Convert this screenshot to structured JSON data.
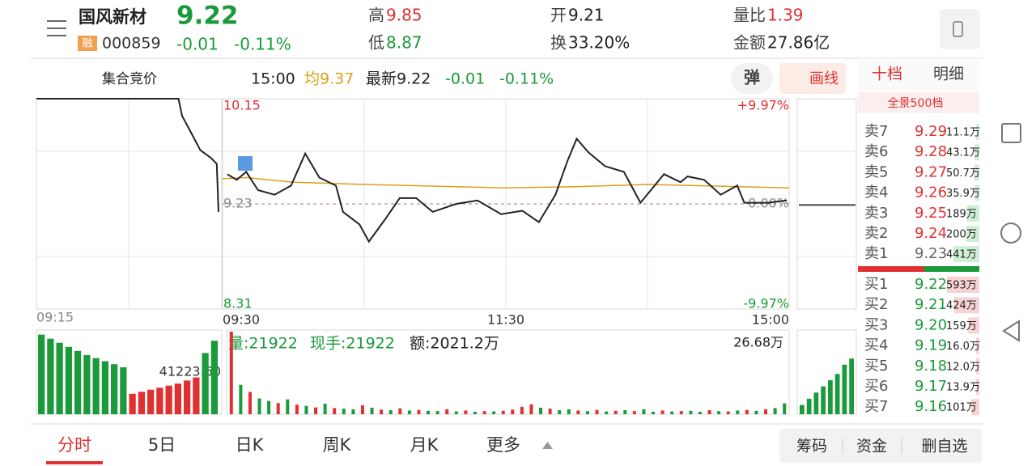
{
  "header": {
    "name": "国风新材",
    "badge": "融",
    "code": "000859",
    "price": "9.22",
    "change": "-0.01",
    "change_pct": "-0.11%",
    "stats": [
      {
        "label": "高",
        "value": "9.85",
        "color": "#e03030"
      },
      {
        "label": "低",
        "value": "8.87",
        "color": "#1a9a3a"
      },
      {
        "label": "开",
        "value": "9.21",
        "color": "#222222"
      },
      {
        "label": "换",
        "value": "33.20%",
        "color": "#222222"
      },
      {
        "label": "量比",
        "value": "1.39",
        "color": "#e03030"
      },
      {
        "label": "金额",
        "value": "27.86亿",
        "color": "#222222"
      }
    ]
  },
  "toolbar": {
    "auction": "集合竞价",
    "time": "15:00",
    "avg": "均9.37",
    "latest": "最新9.22",
    "change": "-0.01",
    "change_pct": "-0.11%",
    "pop": "弹",
    "draw": "画线"
  },
  "chart": {
    "ylim": [
      8.31,
      10.15
    ],
    "yticks": [
      10.15,
      9.23,
      8.31
    ],
    "pct_labels": [
      "+9.97%",
      "0.00%",
      "-9.97%"
    ],
    "time_labels": [
      "09:15",
      "09:30",
      "11:30",
      "15:00"
    ],
    "auction": {
      "xlim": [
        0,
        10
      ],
      "x": [
        0,
        7.8,
        8,
        8.5,
        9,
        9.6,
        9.9,
        10
      ],
      "values": [
        10.15,
        10.15,
        10.0,
        9.85,
        9.7,
        9.63,
        9.58,
        9.16
      ],
      "color": "#222222"
    },
    "price": {
      "xlim": [
        0,
        240
      ],
      "x": [
        2,
        6,
        10,
        15,
        22,
        29,
        35,
        41,
        48,
        51,
        58,
        62,
        69,
        75,
        82,
        89,
        99,
        108,
        118,
        127,
        134,
        141,
        146,
        150,
        155,
        162,
        170,
        177,
        183,
        187,
        194,
        197,
        204,
        211,
        218,
        221,
        231,
        239
      ],
      "values": [
        9.49,
        9.44,
        9.51,
        9.35,
        9.31,
        9.39,
        9.67,
        9.46,
        9.39,
        9.16,
        9.05,
        8.9,
        9.1,
        9.28,
        9.28,
        9.16,
        9.23,
        9.26,
        9.14,
        9.17,
        9.07,
        9.31,
        9.6,
        9.8,
        9.68,
        9.56,
        9.51,
        9.24,
        9.39,
        9.49,
        9.42,
        9.47,
        9.44,
        9.31,
        9.39,
        9.24,
        9.24,
        9.26
      ],
      "color": "#222222"
    },
    "average": {
      "x": [
        0,
        10,
        30,
        60,
        120,
        150,
        180,
        240
      ],
      "values": [
        9.45,
        9.46,
        9.42,
        9.4,
        9.37,
        9.38,
        9.4,
        9.37
      ],
      "color": "#d9a018"
    },
    "after_hours": {
      "values": [
        9.22,
        9.22
      ],
      "color": "#444444"
    }
  },
  "volume": {
    "quantity": "量:21922",
    "hand": "现手:21922",
    "amount": "额:2021.2万",
    "max_label": "26.68万",
    "ylim": [
      0,
      26.68
    ],
    "values": [
      26.68,
      9.5,
      7.2,
      5.1,
      4.3,
      3.6,
      4.8,
      3.1,
      2.7,
      2.2,
      3.4,
      2.0,
      1.8,
      1.6,
      2.9,
      2.1,
      1.5,
      1.3,
      1.9,
      1.2,
      1.4,
      1.1,
      1.0,
      1.6,
      0.9,
      1.2,
      0.8,
      1.0,
      0.9,
      1.1,
      1.5,
      2.4,
      3.2,
      2.1,
      1.8,
      1.3,
      1.6,
      1.2,
      1.0,
      1.4,
      0.9,
      1.1,
      1.3,
      1.0,
      1.6,
      0.8,
      1.2,
      0.9,
      1.0,
      1.1,
      0.8,
      1.3,
      1.0,
      0.9,
      1.2,
      1.4,
      1.1,
      1.6,
      2.0,
      3.5
    ],
    "colors": [
      "#e03030",
      "#1a9a3a",
      "#e03030",
      "#1a9a3a",
      "#1a9a3a",
      "#e03030",
      "#1a9a3a",
      "#e03030",
      "#1a9a3a",
      "#e03030",
      "#1a9a3a",
      "#e03030",
      "#1a9a3a",
      "#1a9a3a",
      "#e03030",
      "#1a9a3a",
      "#e03030",
      "#1a9a3a",
      "#e03030",
      "#1a9a3a",
      "#e03030",
      "#1a9a3a",
      "#1a9a3a",
      "#e03030",
      "#1a9a3a",
      "#e03030",
      "#1a9a3a",
      "#e03030",
      "#1a9a3a",
      "#e03030",
      "#e03030",
      "#e03030",
      "#e03030",
      "#1a9a3a",
      "#e03030",
      "#1a9a3a",
      "#1a9a3a",
      "#e03030",
      "#1a9a3a",
      "#e03030",
      "#1a9a3a",
      "#e03030",
      "#1a9a3a",
      "#e03030",
      "#1a9a3a",
      "#1a9a3a",
      "#e03030",
      "#1a9a3a",
      "#e03030",
      "#1a9a3a",
      "#1a9a3a",
      "#e03030",
      "#1a9a3a",
      "#e03030",
      "#1a9a3a",
      "#e03030",
      "#1a9a3a",
      "#e03030",
      "#1a9a3a",
      "#1a9a3a"
    ],
    "auction": {
      "ref": {
        "value": 41223.6,
        "label": "41223.60"
      },
      "values": [
        78000,
        74000,
        70000,
        66000,
        62000,
        58000,
        55000,
        52000,
        49000,
        46000,
        20000,
        22000,
        24000,
        26000,
        28000,
        30000,
        33000,
        36000,
        60000,
        72000
      ],
      "colors": [
        "#1a9a3a",
        "#1a9a3a",
        "#1a9a3a",
        "#1a9a3a",
        "#1a9a3a",
        "#1a9a3a",
        "#1a9a3a",
        "#1a9a3a",
        "#1a9a3a",
        "#1a9a3a",
        "#e03030",
        "#e03030",
        "#e03030",
        "#e03030",
        "#e03030",
        "#e03030",
        "#e03030",
        "#e03030",
        "#1a9a3a",
        "#1a9a3a"
      ]
    },
    "after_hours": {
      "values": [
        3,
        5,
        7,
        9,
        11,
        13,
        16,
        18
      ],
      "color": "#1a9a3a"
    }
  },
  "order_book": {
    "tabs": [
      "十档",
      "明细"
    ],
    "depth": "全景500档",
    "asks": [
      {
        "label": "卖7",
        "price": "9.29",
        "volume": "11.1万"
      },
      {
        "label": "卖6",
        "price": "9.28",
        "volume": "43.1万"
      },
      {
        "label": "卖5",
        "price": "9.27",
        "volume": "50.7万"
      },
      {
        "label": "卖4",
        "price": "9.26",
        "volume": "35.9万"
      },
      {
        "label": "卖3",
        "price": "9.25",
        "volume": "189万"
      },
      {
        "label": "卖2",
        "price": "9.24",
        "volume": "200万"
      },
      {
        "label": "卖1",
        "price": "9.23",
        "volume": "441万"
      }
    ],
    "bids": [
      {
        "label": "买1",
        "price": "9.22",
        "volume": "593万"
      },
      {
        "label": "买2",
        "price": "9.21",
        "volume": "424万"
      },
      {
        "label": "买3",
        "price": "9.20",
        "volume": "159万"
      },
      {
        "label": "买4",
        "price": "9.19",
        "volume": "16.0万"
      },
      {
        "label": "买5",
        "price": "9.18",
        "volume": "12.0万"
      },
      {
        "label": "买6",
        "price": "9.17",
        "volume": "13.9万"
      },
      {
        "label": "买7",
        "price": "9.16",
        "volume": "101万"
      }
    ]
  },
  "bottom": {
    "tabs": [
      "分时",
      "5日",
      "日K",
      "周K",
      "月K",
      "更多"
    ],
    "actions": [
      "筹码",
      "资金",
      "删自选"
    ]
  }
}
